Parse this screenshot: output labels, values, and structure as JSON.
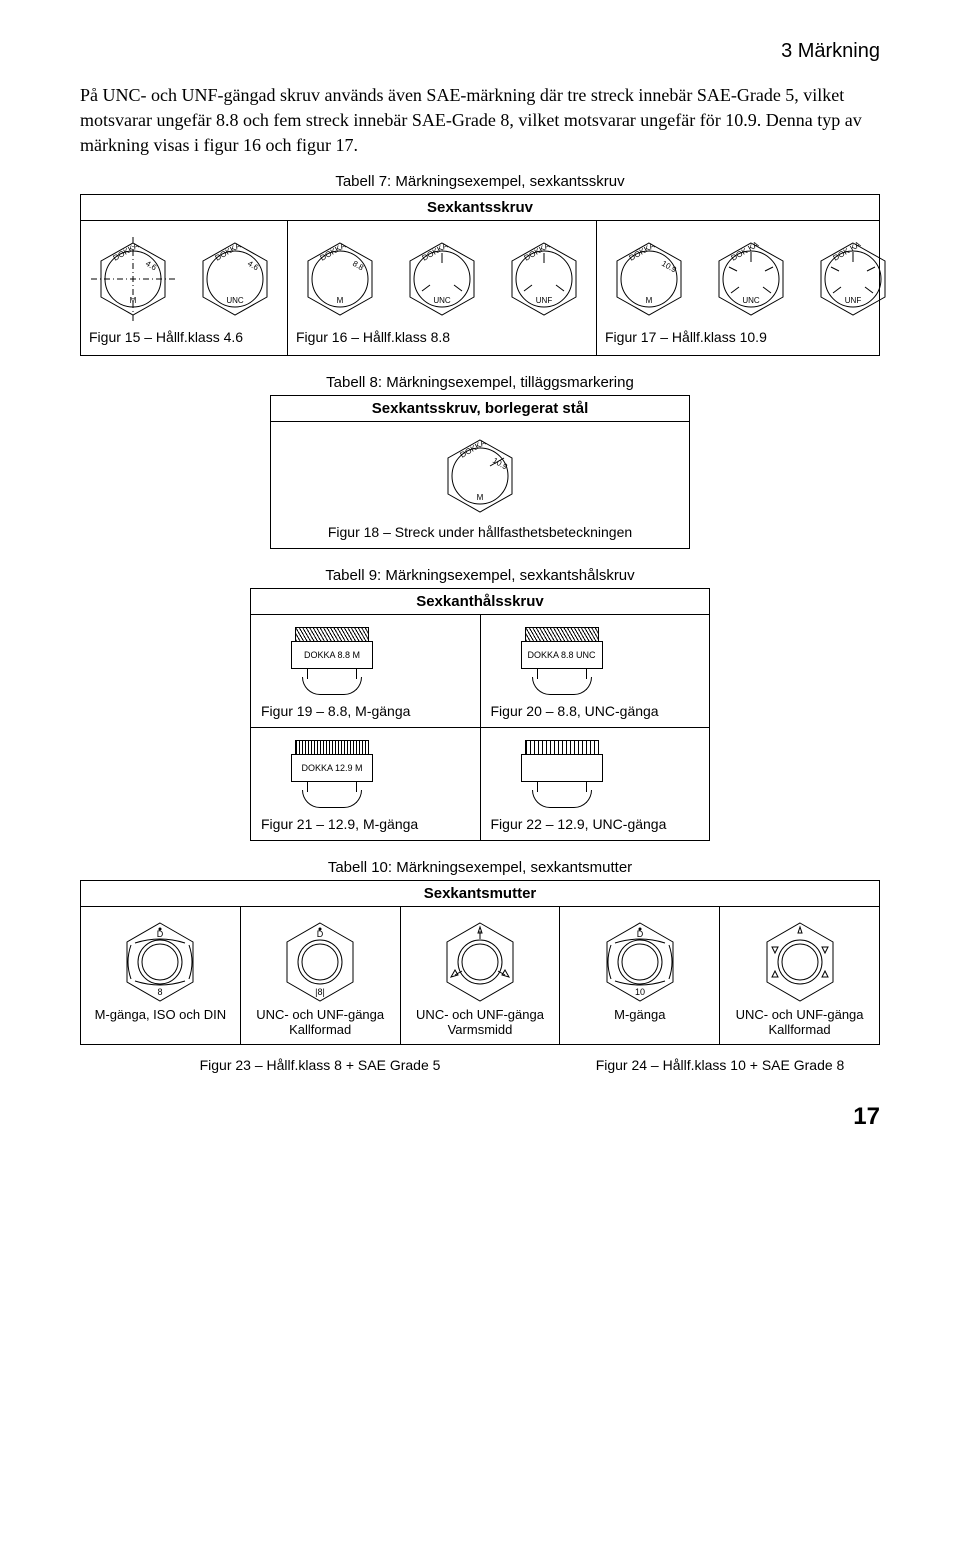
{
  "colors": {
    "stroke": "#000000",
    "bg": "#ffffff",
    "dash": "#000000"
  },
  "header": {
    "section": "3 Märkning"
  },
  "intro": "På UNC- och UNF-gängad skruv används även SAE-märkning där tre streck innebär SAE-Grade 5, vilket motsvarar ungefär 8.8 och fem streck innebär SAE-Grade 8, vilket motsvarar ungefär för 10.9. Denna typ av märkning visas i figur 16 och figur 17.",
  "table7": {
    "caption": "Tabell 7: Märkningsexempel, sexkantsskruv",
    "header": "Sexkantsskruv",
    "rows": [
      {
        "figs": [
          {
            "dokka": "DOKKA",
            "grade": "4.6",
            "thread": "M",
            "centerline": true
          },
          {
            "dokka": "DOKKA",
            "grade": "4.6",
            "thread": "UNC",
            "centerline": false
          }
        ],
        "caption": "Figur 15 – Hållf.klass 4.6"
      },
      {
        "figs": [
          {
            "dokka": "DOKKA",
            "grade": "8.8",
            "thread": "M",
            "tick3": false
          },
          {
            "dokka": "DOKKA",
            "grade": "",
            "thread": "UNC",
            "tick3": true
          },
          {
            "dokka": "DOKKA",
            "grade": "",
            "thread": "UNF",
            "tick3": true
          }
        ],
        "caption": "Figur 16 – Hållf.klass 8.8"
      },
      {
        "figs": [
          {
            "dokka": "DOKKA",
            "grade": "10.9",
            "thread": "M",
            "tick5": false
          },
          {
            "dokka": "DOK KA",
            "grade": "",
            "thread": "UNC",
            "tick5": true
          },
          {
            "dokka": "DOK KA",
            "grade": "",
            "thread": "UNF",
            "tick5": true
          }
        ],
        "caption": "Figur 17 – Hållf.klass 10.9"
      }
    ]
  },
  "table8": {
    "caption": "Tabell 8: Märkningsexempel, tilläggsmarkering",
    "header": "Sexkantsskruv, borlegerat stål",
    "fig": {
      "dokka": "DOKKA",
      "grade": "10.9",
      "underline": true,
      "thread": "M"
    },
    "figcaption": "Figur 18 – Streck under hållfasthetsbeteckningen"
  },
  "table9": {
    "caption": "Tabell 9: Märkningsexempel, sexkantshålskruv",
    "header": "Sexkanthålsskruv",
    "cells": [
      {
        "label": "DOKKA 8.8 M",
        "knurl": "diag",
        "caption": "Figur 19 – 8.8, M-gänga"
      },
      {
        "label": "DOKKA 8.8 UNC",
        "knurl": "diag",
        "caption": "Figur 20 – 8.8, UNC-gänga"
      },
      {
        "label": "DOKKA 12.9 M",
        "knurl": "cross",
        "caption": "Figur 21 – 12.9, M-gänga"
      },
      {
        "label": "",
        "knurl": "vertical",
        "caption": "Figur 22 – 12.9, UNC-gänga"
      }
    ]
  },
  "table10": {
    "caption": "Tabell 10: Märkningsexempel, sexkantsmutter",
    "header": "Sexkantsmutter",
    "cols": [
      {
        "top": "D",
        "bot": "8",
        "arcs": true,
        "dash3": false,
        "dash5": false,
        "cap": "M-gänga, ISO och DIN"
      },
      {
        "top": "D",
        "bot": "|8|",
        "arcs": false,
        "dash3": false,
        "dash5": false,
        "cap": "UNC- och UNF-gänga Kallformad"
      },
      {
        "top": "",
        "bot": "",
        "arcs": false,
        "dash3": true,
        "dash5": false,
        "cap": "UNC- och UNF-gänga Varmsmidd"
      },
      {
        "top": "D",
        "bot": "10",
        "arcs": true,
        "dash3": false,
        "dash5": false,
        "cap": "M-gänga"
      },
      {
        "top": "",
        "bot": "",
        "arcs": false,
        "dash3": false,
        "dash5": true,
        "cap": "UNC- och UNF-gänga Kallformad"
      }
    ],
    "figline_left": "Figur 23 – Hållf.klass 8 + SAE Grade 5",
    "figline_right": "Figur 24 – Hållf.klass 10 + SAE Grade 8"
  },
  "pageNumber": "17"
}
